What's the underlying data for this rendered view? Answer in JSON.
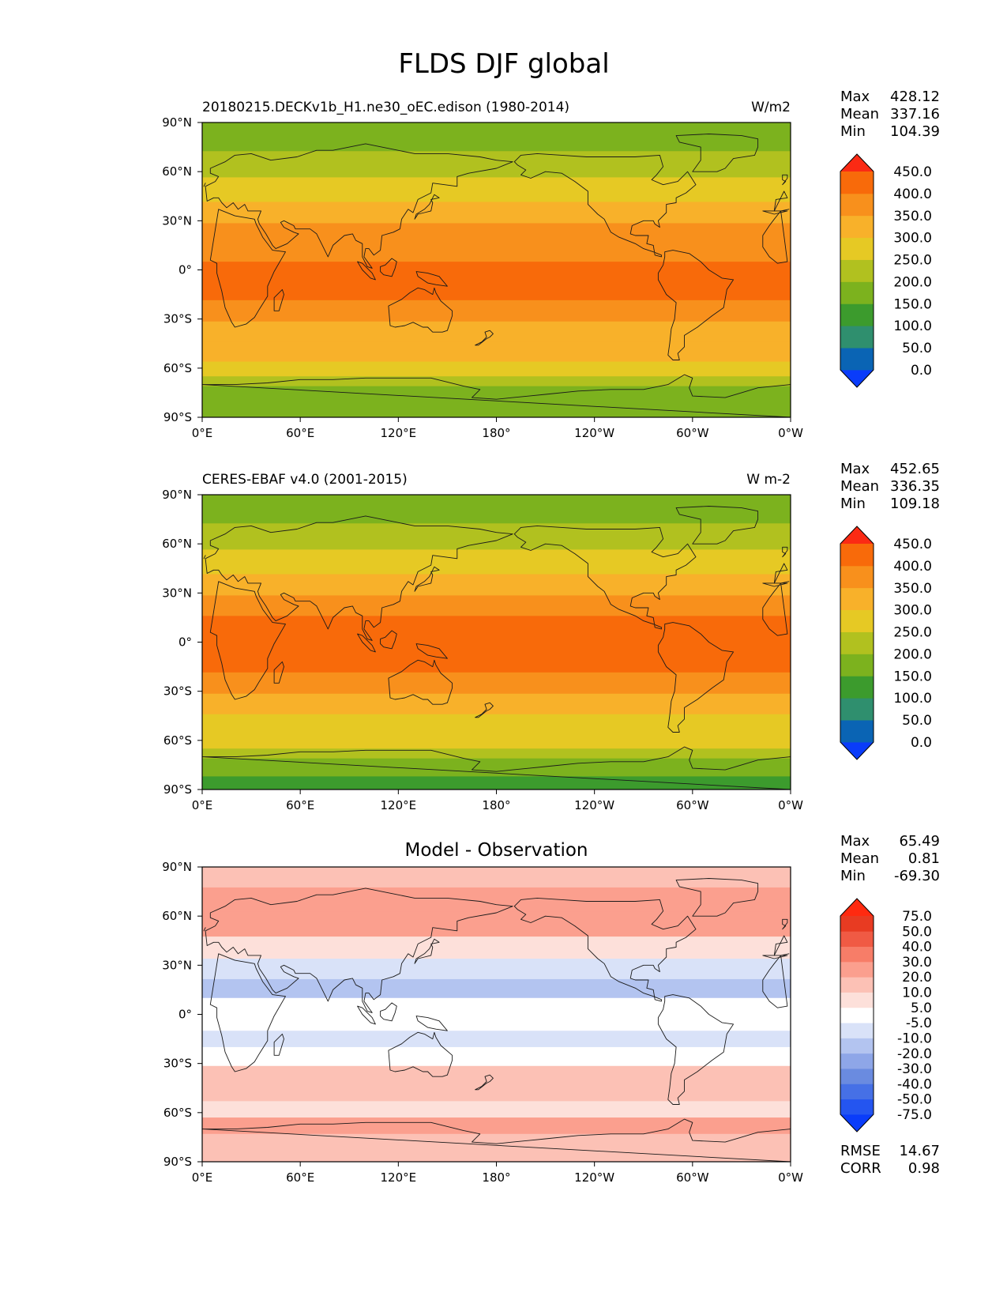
{
  "suptitle": "FLDS DJF global",
  "tick_labels": {
    "lat": [
      "90°N",
      "60°N",
      "30°N",
      "0°",
      "30°S",
      "60°S",
      "90°S"
    ],
    "lon": [
      "0°E",
      "60°E",
      "120°E",
      "180°",
      "120°W",
      "60°W",
      "0°W"
    ]
  },
  "chart_data": [
    {
      "type": "heatmap",
      "panel": "model",
      "left_title": "20180215.DECKv1b_H1.ne30_oEC.edison (1980-2014)",
      "right_title": "W/m2",
      "center_title": "",
      "xlim": [
        0,
        360
      ],
      "ylim": [
        -90,
        90
      ],
      "stats": [
        {
          "label": "Max",
          "value": "428.12"
        },
        {
          "label": "Mean",
          "value": "337.16"
        },
        {
          "label": "Min",
          "value": "104.39"
        }
      ],
      "colorbar": {
        "levels": [
          "0.0",
          "50.0",
          "100.0",
          "150.0",
          "200.0",
          "250.0",
          "300.0",
          "350.0",
          "400.0",
          "450.0"
        ],
        "colors": [
          "#0a3cfa",
          "#0a64b4",
          "#2f8f6e",
          "#3c9b2d",
          "#7cb21e",
          "#b1c11f",
          "#e6c924",
          "#f8b12a",
          "#f8901c",
          "#f86a0a",
          "#fb2a14"
        ]
      },
      "bands": [
        {
          "lat": 80,
          "value": 175
        },
        {
          "lat": 65,
          "value": 230
        },
        {
          "lat": 48,
          "value": 275
        },
        {
          "lat": 35,
          "value": 315
        },
        {
          "lat": 22,
          "value": 355
        },
        {
          "lat": 10,
          "value": 395
        },
        {
          "lat": 0,
          "value": 405
        },
        {
          "lat": -12,
          "value": 400
        },
        {
          "lat": -25,
          "value": 370
        },
        {
          "lat": -38,
          "value": 335
        },
        {
          "lat": -50,
          "value": 300
        },
        {
          "lat": -62,
          "value": 285
        },
        {
          "lat": -68,
          "value": 235
        },
        {
          "lat": -74,
          "value": 175
        },
        {
          "lat": -90,
          "value": 150
        }
      ]
    },
    {
      "type": "heatmap",
      "panel": "observation",
      "left_title": "CERES-EBAF v4.0 (2001-2015)",
      "right_title": "W m-2",
      "center_title": "",
      "xlim": [
        0,
        360
      ],
      "ylim": [
        -90,
        90
      ],
      "stats": [
        {
          "label": "Max",
          "value": "452.65"
        },
        {
          "label": "Mean",
          "value": "336.35"
        },
        {
          "label": "Min",
          "value": "109.18"
        }
      ],
      "colorbar": {
        "levels": [
          "0.0",
          "50.0",
          "100.0",
          "150.0",
          "200.0",
          "250.0",
          "300.0",
          "350.0",
          "400.0",
          "450.0"
        ],
        "colors": [
          "#0a3cfa",
          "#0a64b4",
          "#2f8f6e",
          "#3c9b2d",
          "#7cb21e",
          "#b1c11f",
          "#e6c924",
          "#f8b12a",
          "#f8901c",
          "#f86a0a",
          "#fb2a14"
        ]
      },
      "bands": [
        {
          "lat": 80,
          "value": 165
        },
        {
          "lat": 65,
          "value": 215
        },
        {
          "lat": 48,
          "value": 270
        },
        {
          "lat": 35,
          "value": 315
        },
        {
          "lat": 22,
          "value": 360
        },
        {
          "lat": 10,
          "value": 400
        },
        {
          "lat": 0,
          "value": 405
        },
        {
          "lat": -12,
          "value": 400
        },
        {
          "lat": -25,
          "value": 365
        },
        {
          "lat": -38,
          "value": 330
        },
        {
          "lat": -50,
          "value": 295
        },
        {
          "lat": -62,
          "value": 275
        },
        {
          "lat": -68,
          "value": 215
        },
        {
          "lat": -74,
          "value": 165
        },
        {
          "lat": -90,
          "value": 140
        }
      ]
    },
    {
      "type": "heatmap",
      "panel": "difference",
      "left_title": "",
      "right_title": "",
      "center_title": "Model - Observation",
      "xlim": [
        0,
        360
      ],
      "ylim": [
        -90,
        90
      ],
      "stats": [
        {
          "label": "Max",
          "value": "65.49"
        },
        {
          "label": "Mean",
          "value": "0.81"
        },
        {
          "label": "Min",
          "value": "-69.30"
        }
      ],
      "extra_stats": [
        {
          "label": "RMSE",
          "value": "14.67"
        },
        {
          "label": "CORR",
          "value": "0.98"
        }
      ],
      "colorbar": {
        "levels": [
          "-75.0",
          "-50.0",
          "-40.0",
          "-30.0",
          "-20.0",
          "-10.0",
          "-5.0",
          "5.0",
          "10.0",
          "20.0",
          "30.0",
          "40.0",
          "50.0",
          "75.0"
        ],
        "colors": [
          "#0a3cfa",
          "#2455f0",
          "#4670e6",
          "#6a8be0",
          "#8ea6e8",
          "#b3c4f0",
          "#d9e2f8",
          "#ffffff",
          "#fde0da",
          "#fcc1b5",
          "#fb9f8e",
          "#f77d68",
          "#f05a44",
          "#e83b22",
          "#ff2a10"
        ]
      },
      "bands": [
        {
          "lat": 85,
          "value": 12
        },
        {
          "lat": 70,
          "value": 28
        },
        {
          "lat": 55,
          "value": 22
        },
        {
          "lat": 40,
          "value": 6
        },
        {
          "lat": 28,
          "value": -8
        },
        {
          "lat": 15,
          "value": -14
        },
        {
          "lat": 5,
          "value": 0
        },
        {
          "lat": -5,
          "value": 2
        },
        {
          "lat": -15,
          "value": -6
        },
        {
          "lat": -25,
          "value": 0
        },
        {
          "lat": -38,
          "value": 14
        },
        {
          "lat": -48,
          "value": 16
        },
        {
          "lat": -58,
          "value": 9
        },
        {
          "lat": -68,
          "value": 22
        },
        {
          "lat": -78,
          "value": 14
        },
        {
          "lat": -90,
          "value": 18
        }
      ]
    }
  ]
}
